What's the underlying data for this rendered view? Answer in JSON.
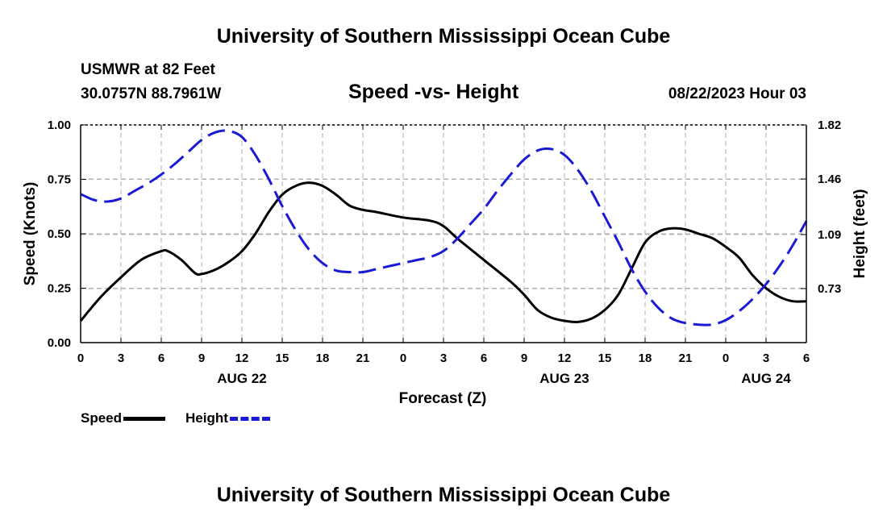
{
  "page": {
    "title_top": "University of Southern Mississippi Ocean Cube",
    "title_bottom": "University of Southern Mississippi Ocean Cube",
    "station": "USMWR at 82 Feet",
    "coords": "30.0757N  88.7961W",
    "subtitle": "Speed -vs- Height",
    "datetime": "08/22/2023 Hour 03"
  },
  "legend": {
    "speed_label": "Speed",
    "height_label": "Height"
  },
  "colors": {
    "speed": "#000000",
    "height": "#1a1ad6",
    "grid": "#b0b0b0"
  },
  "chart_data": {
    "type": "line",
    "title": "Speed -vs- Height",
    "xlabel": "Forecast (Z)",
    "ylabel": "Speed (Knots)",
    "y2label": "Height (feet)",
    "xlim": [
      0,
      54
    ],
    "ylim": [
      0,
      1.0
    ],
    "y2lim": [
      0.37,
      1.82
    ],
    "grid": true,
    "x_ticks": [
      {
        "x": 0,
        "label": "0"
      },
      {
        "x": 3,
        "label": "3"
      },
      {
        "x": 6,
        "label": "6"
      },
      {
        "x": 9,
        "label": "9"
      },
      {
        "x": 12,
        "label": "12"
      },
      {
        "x": 15,
        "label": "15"
      },
      {
        "x": 18,
        "label": "18"
      },
      {
        "x": 21,
        "label": "21"
      },
      {
        "x": 24,
        "label": "0"
      },
      {
        "x": 27,
        "label": "3"
      },
      {
        "x": 30,
        "label": "6"
      },
      {
        "x": 33,
        "label": "9"
      },
      {
        "x": 36,
        "label": "12"
      },
      {
        "x": 39,
        "label": "15"
      },
      {
        "x": 42,
        "label": "18"
      },
      {
        "x": 45,
        "label": "21"
      },
      {
        "x": 48,
        "label": "0"
      },
      {
        "x": 51,
        "label": "3"
      },
      {
        "x": 54,
        "label": "6"
      }
    ],
    "day_labels": [
      {
        "x": 12,
        "label": "AUG 22"
      },
      {
        "x": 36,
        "label": "AUG 23"
      },
      {
        "x": 51,
        "label": "AUG 24"
      }
    ],
    "y_ticks": [
      {
        "v": 0.0,
        "label": "0.00"
      },
      {
        "v": 0.25,
        "label": "0.25"
      },
      {
        "v": 0.5,
        "label": "0.50"
      },
      {
        "v": 0.75,
        "label": "0.75"
      },
      {
        "v": 1.0,
        "label": "1.00"
      }
    ],
    "y2_ticks": [
      {
        "v": 0.73,
        "label": "0.73"
      },
      {
        "v": 1.09,
        "label": "1.09"
      },
      {
        "v": 1.46,
        "label": "1.46"
      },
      {
        "v": 1.82,
        "label": "1.82"
      }
    ],
    "series": [
      {
        "name": "Speed",
        "axis": "left",
        "style": "solid",
        "x": [
          0,
          1.5,
          3,
          4.5,
          6,
          6.5,
          7.5,
          8.5,
          9,
          10,
          11,
          12,
          13,
          14,
          15,
          16,
          17,
          18,
          19,
          20,
          21,
          22,
          24,
          26,
          27,
          28,
          30,
          32,
          33,
          34,
          35,
          36,
          37,
          38,
          39,
          40,
          41,
          42,
          43,
          44,
          45,
          46,
          47,
          48,
          49,
          50,
          51,
          52,
          53,
          54
        ],
        "y": [
          0.1,
          0.21,
          0.3,
          0.38,
          0.42,
          0.42,
          0.38,
          0.32,
          0.315,
          0.335,
          0.37,
          0.42,
          0.5,
          0.6,
          0.68,
          0.72,
          0.735,
          0.72,
          0.68,
          0.63,
          0.61,
          0.6,
          0.575,
          0.56,
          0.535,
          0.48,
          0.38,
          0.28,
          0.22,
          0.15,
          0.115,
          0.1,
          0.095,
          0.11,
          0.15,
          0.22,
          0.34,
          0.46,
          0.51,
          0.525,
          0.52,
          0.5,
          0.48,
          0.44,
          0.39,
          0.31,
          0.25,
          0.21,
          0.19,
          0.19
        ]
      },
      {
        "name": "Height",
        "axis": "right",
        "style": "dashed",
        "x": [
          0,
          1,
          2,
          3,
          4,
          5,
          6,
          7,
          8,
          9,
          10,
          11,
          12,
          13,
          14,
          15,
          16,
          17,
          18,
          19,
          20,
          21,
          22,
          23,
          24,
          25,
          26,
          27,
          28,
          29,
          30,
          31,
          32,
          33,
          34,
          35,
          36,
          37,
          38,
          39,
          40,
          41,
          42,
          43,
          44,
          45,
          46,
          47,
          48,
          49,
          50,
          51,
          52,
          53,
          54
        ],
        "y": [
          1.36,
          1.32,
          1.31,
          1.33,
          1.38,
          1.43,
          1.49,
          1.56,
          1.64,
          1.72,
          1.77,
          1.78,
          1.74,
          1.62,
          1.46,
          1.28,
          1.12,
          0.99,
          0.9,
          0.85,
          0.84,
          0.84,
          0.86,
          0.88,
          0.9,
          0.92,
          0.94,
          0.98,
          1.06,
          1.16,
          1.26,
          1.38,
          1.49,
          1.59,
          1.65,
          1.66,
          1.62,
          1.52,
          1.38,
          1.21,
          1.04,
          0.86,
          0.71,
          0.6,
          0.53,
          0.5,
          0.49,
          0.49,
          0.52,
          0.58,
          0.66,
          0.76,
          0.88,
          1.02,
          1.18
        ]
      }
    ]
  }
}
